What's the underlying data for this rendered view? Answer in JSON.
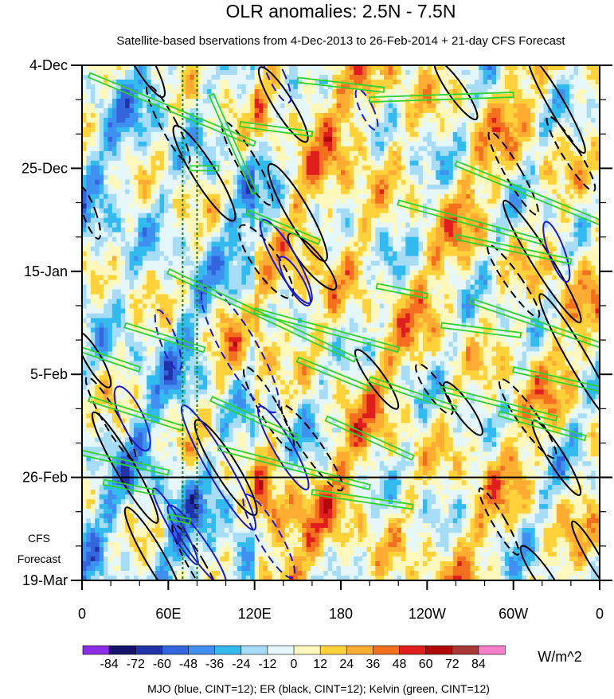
{
  "chart_data": {
    "type": "heatmap",
    "title": "OLR anomalies: 2.5N - 7.5N",
    "subtitle": "Satellite-based bservations from 4-Dec-2013 to 26-Feb-2014 + 21-day CFS Forecast",
    "xlabel": "",
    "ylabel": "",
    "x_ticks": [
      "0",
      "60E",
      "120E",
      "180",
      "120W",
      "60W",
      "0"
    ],
    "x_tick_values": [
      0,
      60,
      120,
      180,
      240,
      300,
      360
    ],
    "xlim": [
      0,
      360
    ],
    "y_ticks": [
      "4-Dec",
      "25-Dec",
      "15-Jan",
      "5-Feb",
      "26-Feb",
      "19-Mar"
    ],
    "y_tick_days": [
      0,
      21,
      42,
      63,
      84,
      105
    ],
    "ylim_days": [
      0,
      105
    ],
    "observation_end": "26-Feb",
    "forecast_label": [
      "CFS",
      "Forecast"
    ],
    "colorbar": {
      "levels": [
        "-84",
        "-72",
        "-60",
        "-48",
        "-36",
        "-24",
        "-12",
        "0",
        "12",
        "24",
        "36",
        "48",
        "60",
        "72",
        "84"
      ],
      "colors": [
        "#8c2ee6",
        "#14146e",
        "#2233a8",
        "#3366dd",
        "#3f90f0",
        "#33bbf0",
        "#a6dcf5",
        "#e5f7fa",
        "#fff8bc",
        "#ffd23c",
        "#ffac33",
        "#f5701e",
        "#e01e1e",
        "#b00808",
        "#a83838",
        "#f880c8"
      ],
      "units": "W/m^2"
    },
    "contours_legend": "MJO (blue, CINT=12); ER (black, CINT=12); Kelvin (green, CINT=12)",
    "series_colors": {
      "MJO": "#1a1acc",
      "ER": "#000000",
      "Kelvin": "#2ed22e",
      "reference_lines": "#1e7a1e"
    },
    "reference_longitudes": [
      70,
      80
    ]
  }
}
